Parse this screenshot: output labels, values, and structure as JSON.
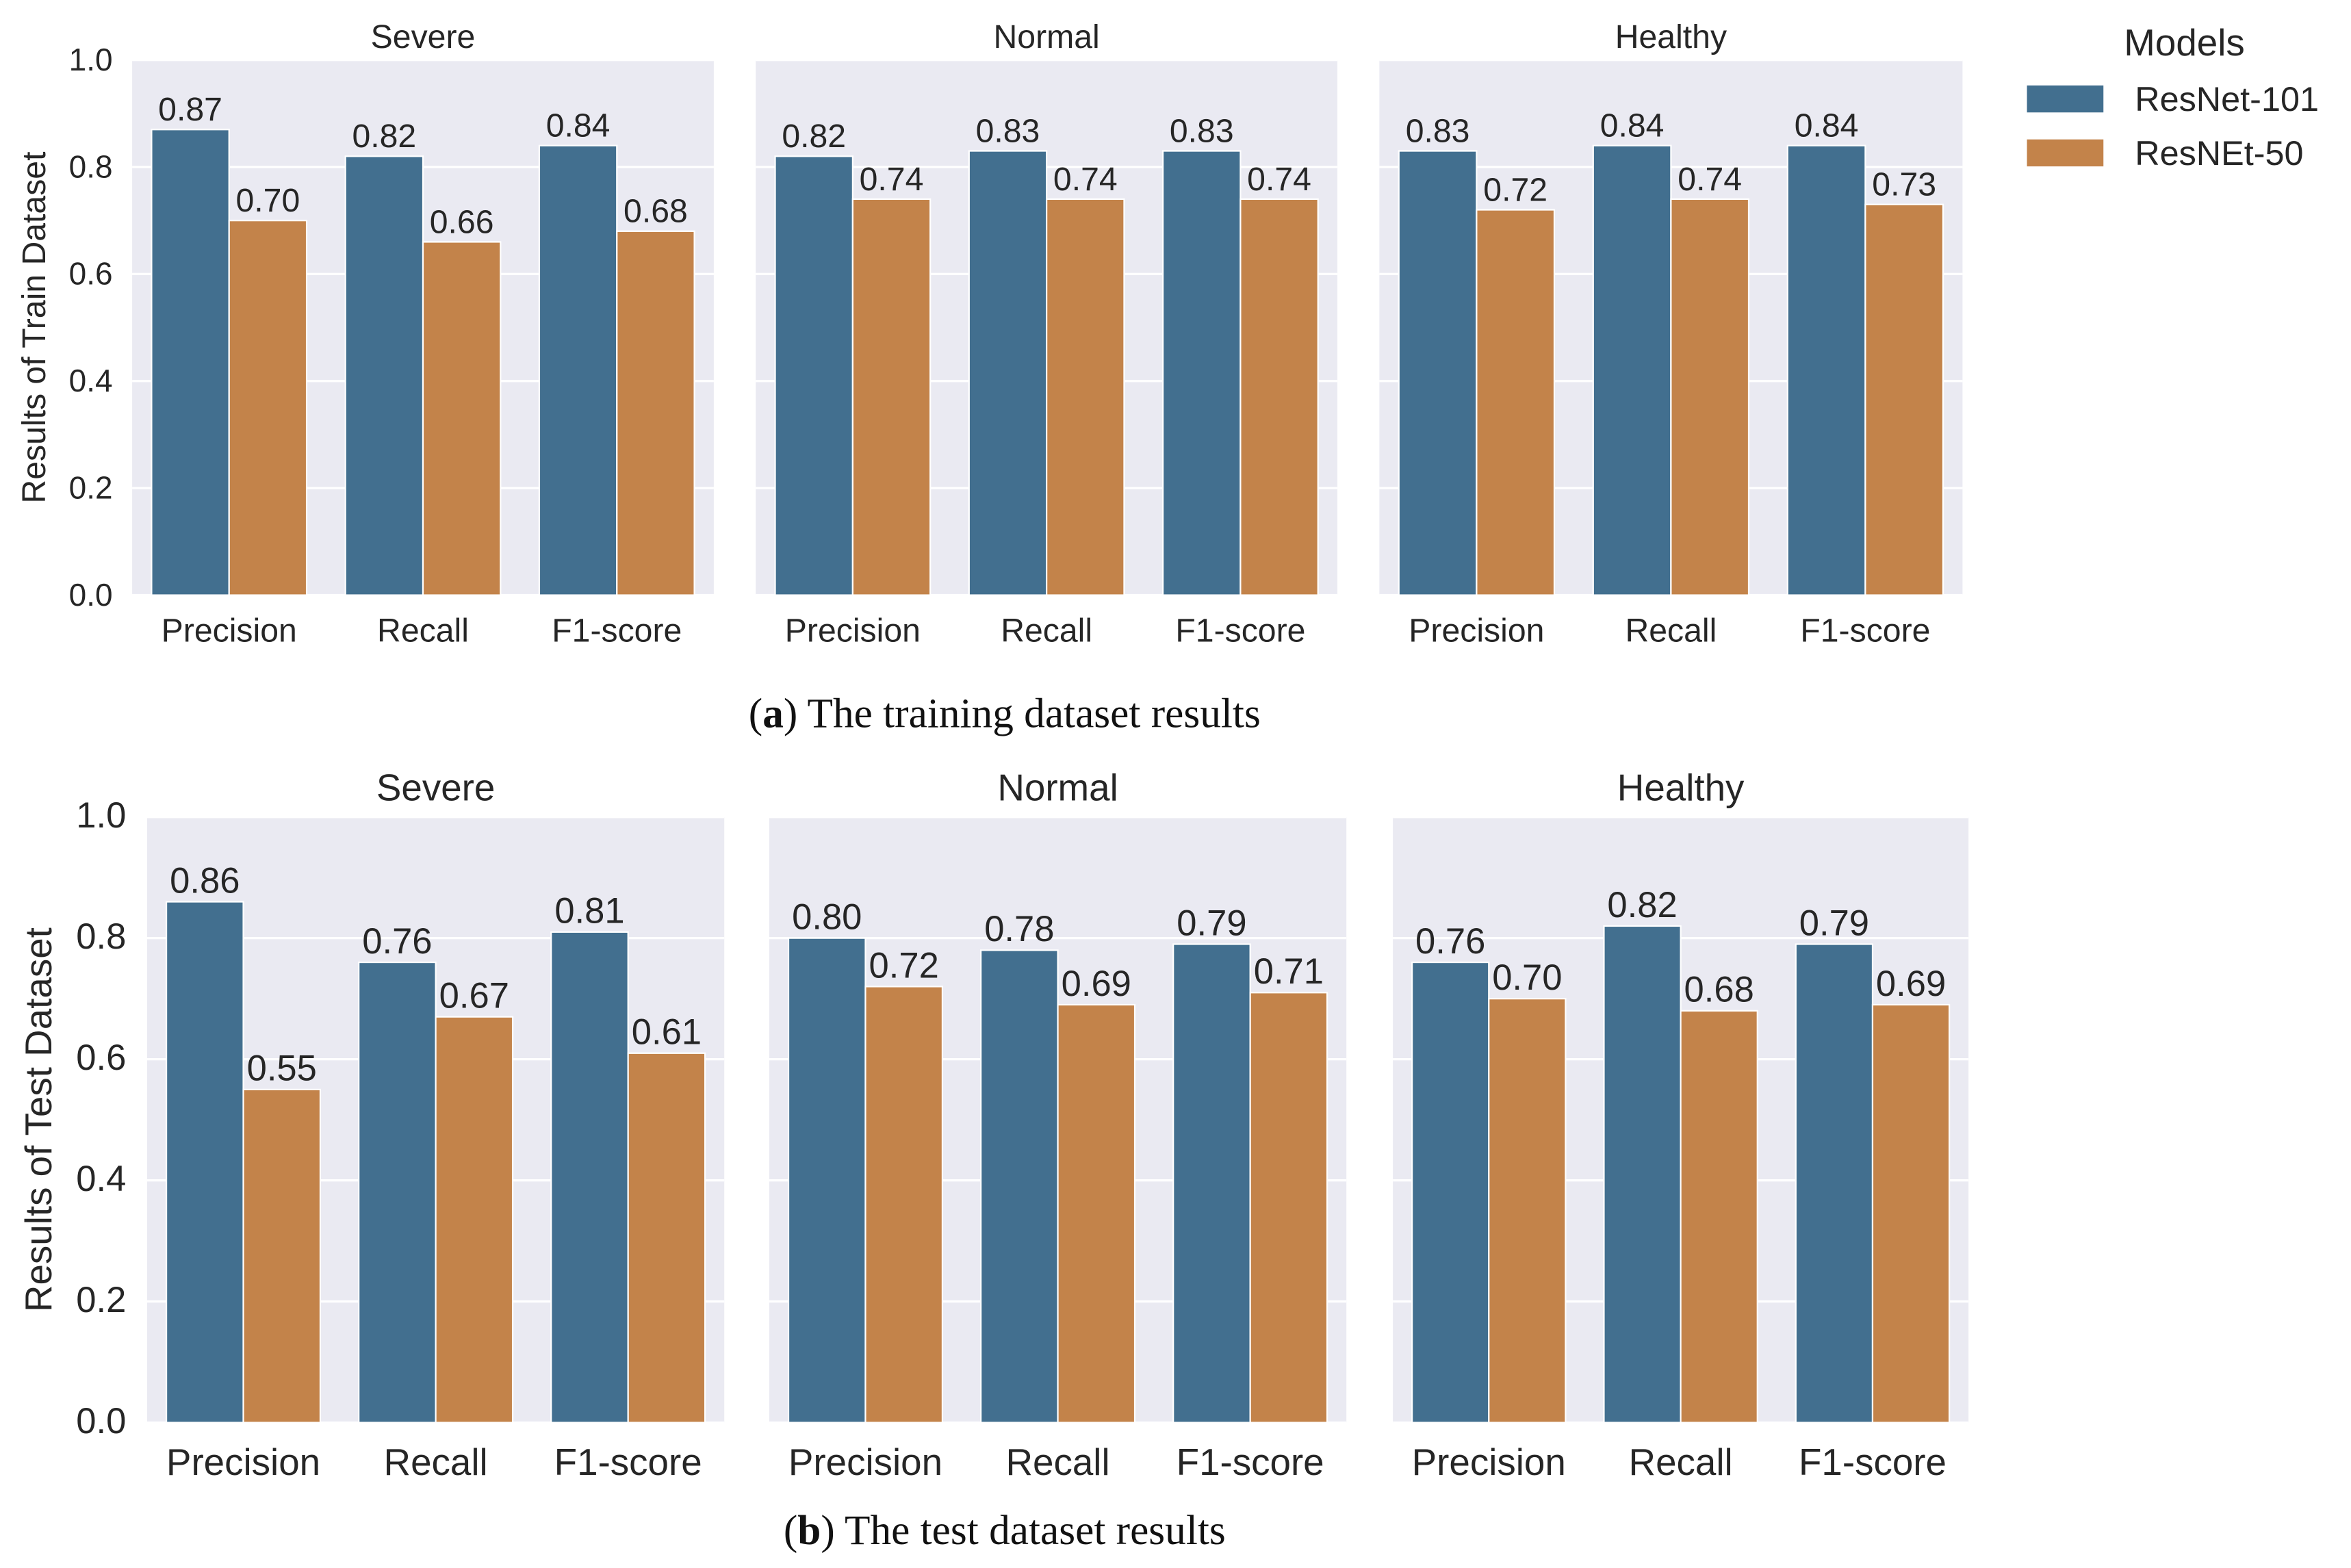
{
  "chart_data": [
    {
      "type": "bar",
      "caption_label": "a",
      "caption_text": " The training dataset results",
      "ylabel": "Results of Train Dataset",
      "ylim": [
        0,
        1.0
      ],
      "yticks": [
        "0.0",
        "0.2",
        "0.4",
        "0.6",
        "0.8",
        "1.0"
      ],
      "grid": true,
      "categories": [
        "Precision",
        "Recall",
        "F1-score"
      ],
      "panels": [
        {
          "title": "Severe",
          "series": [
            {
              "name": "ResNet-101",
              "values": [
                0.87,
                0.82,
                0.84
              ],
              "labels": [
                "0.87",
                "0.82",
                "0.84"
              ]
            },
            {
              "name": "ResNEt-50",
              "values": [
                0.7,
                0.66,
                0.68
              ],
              "labels": [
                "0.70",
                "0.66",
                "0.68"
              ]
            }
          ]
        },
        {
          "title": "Normal",
          "series": [
            {
              "name": "ResNet-101",
              "values": [
                0.82,
                0.83,
                0.83
              ],
              "labels": [
                "0.82",
                "0.83",
                "0.83"
              ]
            },
            {
              "name": "ResNEt-50",
              "values": [
                0.74,
                0.74,
                0.74
              ],
              "labels": [
                "0.74",
                "0.74",
                "0.74"
              ]
            }
          ]
        },
        {
          "title": "Healthy",
          "series": [
            {
              "name": "ResNet-101",
              "values": [
                0.83,
                0.84,
                0.84
              ],
              "labels": [
                "0.83",
                "0.84",
                "0.84"
              ]
            },
            {
              "name": "ResNEt-50",
              "values": [
                0.72,
                0.74,
                0.73
              ],
              "labels": [
                "0.72",
                "0.74",
                "0.73"
              ]
            }
          ]
        }
      ]
    },
    {
      "type": "bar",
      "caption_label": "b",
      "caption_text": " The test dataset results",
      "ylabel": "Results of Test Dataset",
      "ylim": [
        0,
        1.0
      ],
      "yticks": [
        "0.0",
        "0.2",
        "0.4",
        "0.6",
        "0.8",
        "1.0"
      ],
      "grid": true,
      "categories": [
        "Precision",
        "Recall",
        "F1-score"
      ],
      "panels": [
        {
          "title": "Severe",
          "series": [
            {
              "name": "ResNet-101",
              "values": [
                0.86,
                0.76,
                0.81
              ],
              "labels": [
                "0.86",
                "0.76",
                "0.81"
              ]
            },
            {
              "name": "ResNEt-50",
              "values": [
                0.55,
                0.67,
                0.61
              ],
              "labels": [
                "0.55",
                "0.67",
                "0.61"
              ]
            }
          ]
        },
        {
          "title": "Normal",
          "series": [
            {
              "name": "ResNet-101",
              "values": [
                0.8,
                0.78,
                0.79
              ],
              "labels": [
                "0.80",
                "0.78",
                "0.79"
              ]
            },
            {
              "name": "ResNEt-50",
              "values": [
                0.72,
                0.69,
                0.71
              ],
              "labels": [
                "0.72",
                "0.69",
                "0.71"
              ]
            }
          ]
        },
        {
          "title": "Healthy",
          "series": [
            {
              "name": "ResNet-101",
              "values": [
                0.76,
                0.82,
                0.79
              ],
              "labels": [
                "0.76",
                "0.82",
                "0.79"
              ]
            },
            {
              "name": "ResNEt-50",
              "values": [
                0.7,
                0.68,
                0.69
              ],
              "labels": [
                "0.70",
                "0.68",
                "0.69"
              ]
            }
          ]
        }
      ]
    }
  ],
  "legend": {
    "title": "Models",
    "placement": "top-right",
    "items": [
      {
        "label": "ResNet-101",
        "color": "#426f8f"
      },
      {
        "label": "ResNEt-50",
        "color": "#c3834a"
      }
    ]
  },
  "colors": {
    "panel_bg": "#eaeaf2",
    "grid": "#ffffff",
    "text": "#262626"
  }
}
